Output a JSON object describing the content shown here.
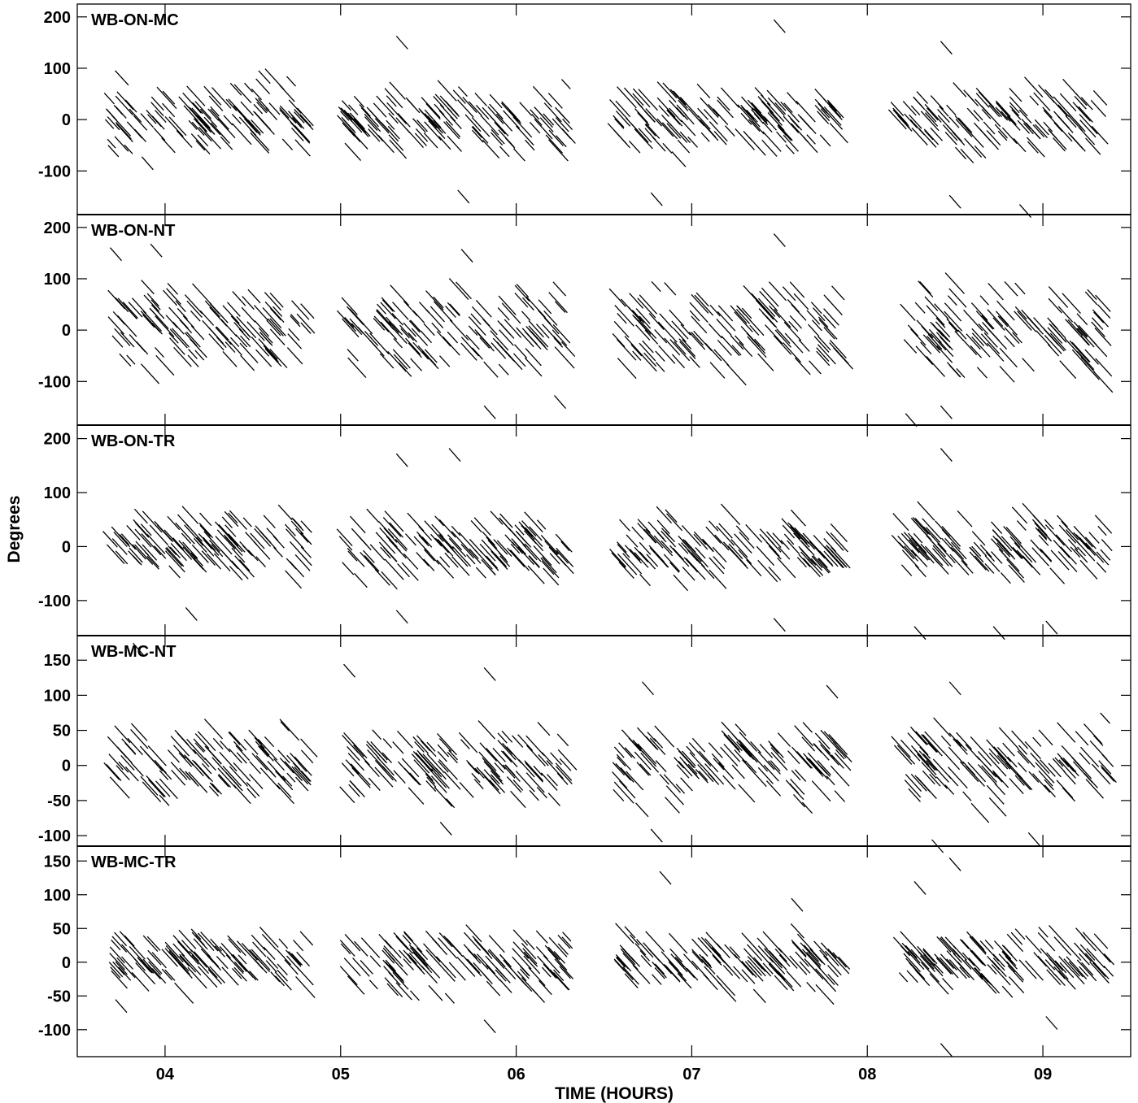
{
  "chart_data": {
    "type": "scatter",
    "xlabel": "TIME (HOURS)",
    "ylabel": "Degrees",
    "xlim": [
      3.5,
      9.5
    ],
    "x_ticks": [
      "04",
      "05",
      "06",
      "07",
      "08",
      "09"
    ],
    "x_tick_values": [
      4,
      5,
      6,
      7,
      8,
      9
    ],
    "scan_blocks": [
      [
        3.68,
        4.82
      ],
      [
        5.02,
        6.3
      ],
      [
        6.57,
        7.87
      ],
      [
        8.17,
        9.38
      ]
    ],
    "panels": [
      {
        "name": "WB-ON-MC",
        "ylim": [
          -185,
          225
        ],
        "yticks": [
          -100,
          0,
          100,
          200
        ],
        "yticklabels": [
          "-100",
          "0",
          "100",
          "200"
        ],
        "spread": 38,
        "center": 0,
        "outliers": [
          [
            7.5,
            182
          ],
          [
            5.35,
            150
          ],
          [
            8.45,
            140
          ],
          [
            6.8,
            -155
          ],
          [
            8.5,
            -160
          ],
          [
            8.9,
            -178
          ],
          [
            5.7,
            -150
          ],
          [
            3.9,
            -85
          ]
        ]
      },
      {
        "name": "WB-ON-NT",
        "ylim": [
          -185,
          225
        ],
        "yticks": [
          -100,
          0,
          100,
          200
        ],
        "yticklabels": [
          "-100",
          "0",
          "100",
          "200"
        ],
        "spread": 48,
        "center": 0,
        "outliers": [
          [
            3.72,
            148
          ],
          [
            3.95,
            155
          ],
          [
            7.5,
            175
          ],
          [
            5.72,
            145
          ],
          [
            8.45,
            -160
          ],
          [
            8.25,
            -175
          ],
          [
            5.85,
            -160
          ],
          [
            6.25,
            -140
          ]
        ]
      },
      {
        "name": "WB-ON-TR",
        "ylim": [
          -165,
          225
        ],
        "yticks": [
          -100,
          0,
          100,
          200
        ],
        "yticklabels": [
          "-100",
          "0",
          "100",
          "200"
        ],
        "spread": 32,
        "center": 0,
        "outliers": [
          [
            5.35,
            160
          ],
          [
            5.65,
            170
          ],
          [
            8.45,
            170
          ],
          [
            5.35,
            -130
          ],
          [
            7.5,
            -145
          ],
          [
            8.3,
            -160
          ],
          [
            8.75,
            -160
          ],
          [
            9.05,
            -150
          ],
          [
            4.15,
            -125
          ]
        ]
      },
      {
        "name": "WB-MC-NT",
        "ylim": [
          -115,
          185
        ],
        "yticks": [
          -100,
          -50,
          0,
          50,
          100,
          150
        ],
        "yticklabels": [
          "-100",
          "-50",
          "0",
          "50",
          "100",
          "150"
        ],
        "spread": 30,
        "center": 0,
        "outliers": [
          [
            3.85,
            165
          ],
          [
            5.05,
            135
          ],
          [
            5.85,
            130
          ],
          [
            8.5,
            110
          ],
          [
            6.75,
            110
          ],
          [
            7.8,
            105
          ],
          [
            8.95,
            -105
          ],
          [
            8.4,
            -115
          ],
          [
            6.8,
            -100
          ],
          [
            5.6,
            -90
          ]
        ]
      },
      {
        "name": "WB-MC-TR",
        "ylim": [
          -140,
          172
        ],
        "yticks": [
          -100,
          -50,
          0,
          50,
          100,
          150
        ],
        "yticklabels": [
          "-100",
          "-50",
          "0",
          "50",
          "100",
          "150"
        ],
        "spread": 25,
        "center": 0,
        "outliers": [
          [
            6.85,
            125
          ],
          [
            8.5,
            145
          ],
          [
            8.3,
            110
          ],
          [
            7.6,
            85
          ],
          [
            5.85,
            -95
          ],
          [
            9.05,
            -90
          ],
          [
            8.45,
            -130
          ],
          [
            3.75,
            -65
          ]
        ]
      }
    ]
  }
}
